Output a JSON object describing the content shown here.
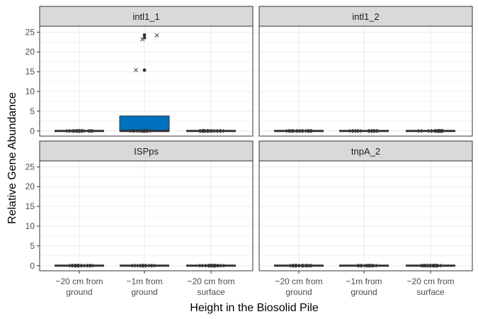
{
  "chart_data": {
    "type": "boxplot",
    "facet_layout": "2x2",
    "xlabel": "Height in the Biosolid Pile",
    "ylabel": "Relative Gene Abundance",
    "ylim": [
      -1.3,
      26.5
    ],
    "y_ticks": [
      0,
      5,
      10,
      15,
      20,
      25
    ],
    "categories": [
      [
        "~20 cm from",
        "ground"
      ],
      [
        "~1m from",
        "ground"
      ],
      [
        "~20 cm from",
        "surface"
      ]
    ],
    "colors": {
      "box_fill": "#0072bd",
      "strip_fill": "#d9d9d9",
      "grid": "#ebebeb",
      "line": "#333333"
    },
    "grid": true,
    "panels": [
      {
        "name": "intl1_1",
        "boxes": [
          {
            "q1": 0,
            "median": 0,
            "q3": 0,
            "whisker_low": 0,
            "whisker_high": 0,
            "filled": false,
            "jitter": [
              0,
              0,
              0,
              0,
              0,
              0,
              0,
              0,
              0,
              0
            ],
            "outliers": []
          },
          {
            "q1": 0,
            "median": 0,
            "q3": 3.8,
            "whisker_low": 0,
            "whisker_high": 3.8,
            "filled": true,
            "jitter": [
              0,
              0,
              0,
              0,
              0,
              0,
              0,
              15.4,
              23.2,
              24.2
            ],
            "outliers": [
              15.4,
              23.6,
              24.3
            ]
          },
          {
            "q1": 0,
            "median": 0,
            "q3": 0,
            "whisker_low": 0,
            "whisker_high": 0,
            "filled": false,
            "jitter": [
              0,
              0,
              0,
              0,
              0,
              0,
              0,
              0,
              0,
              0
            ],
            "outliers": []
          }
        ]
      },
      {
        "name": "intl1_2",
        "boxes": [
          {
            "q1": 0,
            "median": 0,
            "q3": 0,
            "whisker_low": 0,
            "whisker_high": 0,
            "filled": false,
            "jitter": [
              0,
              0,
              0,
              0,
              0,
              0,
              0,
              0,
              0,
              0
            ],
            "outliers": []
          },
          {
            "q1": 0,
            "median": 0,
            "q3": 0,
            "whisker_low": 0,
            "whisker_high": 0,
            "filled": false,
            "jitter": [
              0,
              0,
              0,
              0,
              0,
              0,
              0,
              0
            ],
            "outliers": []
          },
          {
            "q1": 0,
            "median": 0,
            "q3": 0,
            "whisker_low": 0,
            "whisker_high": 0,
            "filled": false,
            "jitter": [
              0,
              0,
              0,
              0,
              0,
              0,
              0,
              0,
              0,
              0
            ],
            "outliers": []
          }
        ]
      },
      {
        "name": "ISPps",
        "boxes": [
          {
            "q1": 0,
            "median": 0,
            "q3": 0,
            "whisker_low": 0,
            "whisker_high": 0,
            "filled": false,
            "jitter": [
              0,
              0,
              0,
              0,
              0,
              0,
              0,
              0,
              0,
              0
            ],
            "outliers": []
          },
          {
            "q1": 0,
            "median": 0,
            "q3": 0,
            "whisker_low": 0,
            "whisker_high": 0,
            "filled": false,
            "jitter": [
              0,
              0,
              0,
              0,
              0,
              0,
              0,
              0,
              0
            ],
            "outliers": []
          },
          {
            "q1": 0,
            "median": 0,
            "q3": 0,
            "whisker_low": 0,
            "whisker_high": 0,
            "filled": false,
            "jitter": [
              0,
              0,
              0,
              0,
              0,
              0,
              0,
              0,
              0
            ],
            "outliers": []
          }
        ]
      },
      {
        "name": "tnpA_2",
        "boxes": [
          {
            "q1": 0,
            "median": 0,
            "q3": 0,
            "whisker_low": 0,
            "whisker_high": 0,
            "filled": false,
            "jitter": [
              0,
              0,
              0,
              0,
              0,
              0,
              0,
              0,
              0,
              0
            ],
            "outliers": []
          },
          {
            "q1": 0,
            "median": 0,
            "q3": 0,
            "whisker_low": 0,
            "whisker_high": 0,
            "filled": false,
            "jitter": [
              0,
              0,
              0,
              0,
              0,
              0,
              0,
              0
            ],
            "outliers": []
          },
          {
            "q1": 0,
            "median": 0,
            "q3": 0,
            "whisker_low": 0,
            "whisker_high": 0,
            "filled": false,
            "jitter": [
              0,
              0,
              0,
              0,
              0,
              0,
              0,
              0,
              0,
              0
            ],
            "outliers": []
          }
        ]
      }
    ]
  }
}
